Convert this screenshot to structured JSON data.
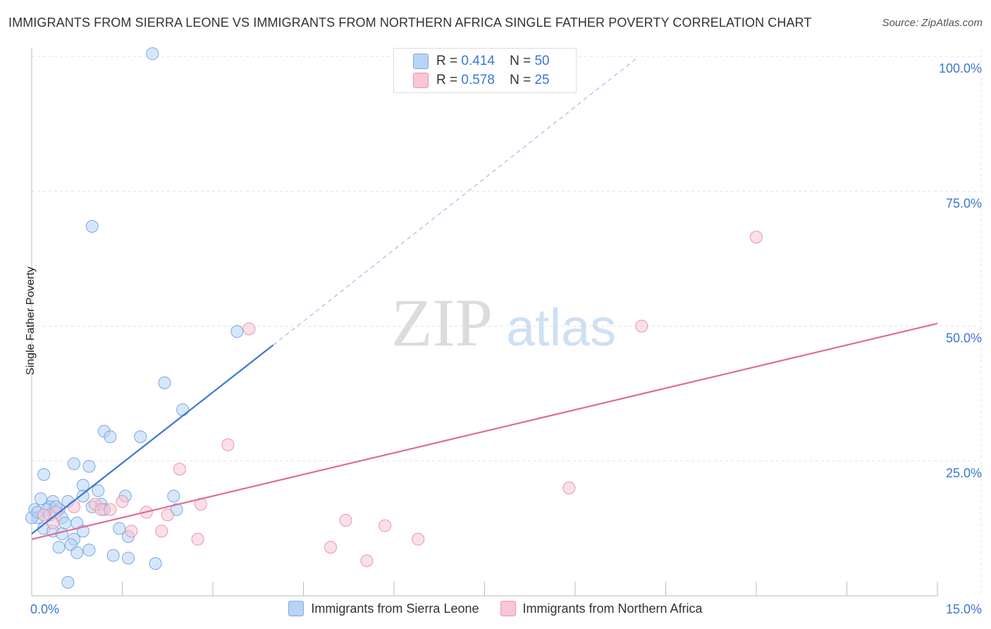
{
  "title": "IMMIGRANTS FROM SIERRA LEONE VS IMMIGRANTS FROM NORTHERN AFRICA SINGLE FATHER POVERTY CORRELATION CHART",
  "source": "Source: ZipAtlas.com",
  "watermark": {
    "zip": "ZIP",
    "atlas": "atlas"
  },
  "stats_box": {
    "rows": [
      {
        "r_label": "R =",
        "r_value": "0.414",
        "n_label": "N =",
        "n_value": "50"
      },
      {
        "r_label": "R =",
        "r_value": "0.578",
        "n_label": "N =",
        "n_value": "25"
      }
    ]
  },
  "chart_data": {
    "type": "scatter",
    "title": "IMMIGRANTS FROM SIERRA LEONE VS IMMIGRANTS FROM NORTHERN AFRICA SINGLE FATHER POVERTY CORRELATION CHART",
    "xlabel": "",
    "ylabel": "Single Father Poverty",
    "xlim": [
      0,
      15
    ],
    "ylim": [
      0,
      100
    ],
    "x_tick_labels": [
      "0.0%",
      "15.0%"
    ],
    "y_tick_labels": [
      "100.0%",
      "75.0%",
      "50.0%",
      "25.0%"
    ],
    "y_ticks": [
      100,
      75,
      50,
      25
    ],
    "colors": {
      "blue": "#3a78d4",
      "blue_fill": "#b7d4f5",
      "pink": "#e06c95",
      "pink_fill": "#f8c6d4"
    },
    "series": [
      {
        "name": "Immigrants from Sierra Leone",
        "color": "#3a78d4",
        "points": [
          [
            2.0,
            100.5
          ],
          [
            1.0,
            68.5
          ],
          [
            3.4,
            49.0
          ],
          [
            2.2,
            39.5
          ],
          [
            2.5,
            34.5
          ],
          [
            1.2,
            30.5
          ],
          [
            1.3,
            29.5
          ],
          [
            1.8,
            29.5
          ],
          [
            0.7,
            24.5
          ],
          [
            0.95,
            24.0
          ],
          [
            0.2,
            22.5
          ],
          [
            0.85,
            20.5
          ],
          [
            1.1,
            19.5
          ],
          [
            0.85,
            18.5
          ],
          [
            1.55,
            18.5
          ],
          [
            2.35,
            18.5
          ],
          [
            0.15,
            18.0
          ],
          [
            0.35,
            17.5
          ],
          [
            0.6,
            17.5
          ],
          [
            1.15,
            17.0
          ],
          [
            0.3,
            16.5
          ],
          [
            0.25,
            16.0
          ],
          [
            0.45,
            16.0
          ],
          [
            1.2,
            16.0
          ],
          [
            1.0,
            16.5
          ],
          [
            2.4,
            16.0
          ],
          [
            0.05,
            16.0
          ],
          [
            0.4,
            16.5
          ],
          [
            0.1,
            14.5
          ],
          [
            0.5,
            14.5
          ],
          [
            0.75,
            13.5
          ],
          [
            0.55,
            13.5
          ],
          [
            0.2,
            12.5
          ],
          [
            0.35,
            12.0
          ],
          [
            0.85,
            12.0
          ],
          [
            0.5,
            11.5
          ],
          [
            1.45,
            12.5
          ],
          [
            1.6,
            11.0
          ],
          [
            0.7,
            10.5
          ],
          [
            0.65,
            9.5
          ],
          [
            0.45,
            9.0
          ],
          [
            0.95,
            8.5
          ],
          [
            0.75,
            8.0
          ],
          [
            1.35,
            7.5
          ],
          [
            1.6,
            7.0
          ],
          [
            2.05,
            6.0
          ],
          [
            0.6,
            2.5
          ],
          [
            0.0,
            14.5
          ],
          [
            0.1,
            15.5
          ],
          [
            0.3,
            15.0
          ]
        ],
        "trend": {
          "x": [
            0.0,
            4.0
          ],
          "y": [
            11.5,
            46.5
          ]
        },
        "trend_extension": {
          "x": [
            4.0,
            10.0
          ],
          "y": [
            46.5,
            99.5
          ]
        }
      },
      {
        "name": "Immigrants from Northern Africa",
        "color": "#e06c95",
        "points": [
          [
            12.0,
            66.5
          ],
          [
            3.6,
            49.5
          ],
          [
            10.1,
            50.0
          ],
          [
            3.25,
            28.0
          ],
          [
            2.45,
            23.5
          ],
          [
            8.9,
            20.0
          ],
          [
            1.5,
            17.5
          ],
          [
            1.05,
            17.0
          ],
          [
            0.7,
            16.5
          ],
          [
            1.15,
            16.0
          ],
          [
            1.3,
            16.0
          ],
          [
            2.8,
            17.0
          ],
          [
            1.9,
            15.5
          ],
          [
            2.25,
            15.0
          ],
          [
            0.4,
            15.5
          ],
          [
            0.2,
            15.0
          ],
          [
            5.2,
            14.0
          ],
          [
            0.35,
            13.5
          ],
          [
            5.85,
            13.0
          ],
          [
            1.65,
            12.0
          ],
          [
            2.15,
            12.0
          ],
          [
            6.4,
            10.5
          ],
          [
            2.75,
            10.5
          ],
          [
            4.95,
            9.0
          ],
          [
            5.55,
            6.5
          ]
        ],
        "trend": {
          "x": [
            0.0,
            15.0
          ],
          "y": [
            10.5,
            50.5
          ]
        }
      }
    ]
  },
  "legend": {
    "items": [
      {
        "label": "Immigrants from Sierra Leone"
      },
      {
        "label": "Immigrants from Northern Africa"
      }
    ]
  }
}
